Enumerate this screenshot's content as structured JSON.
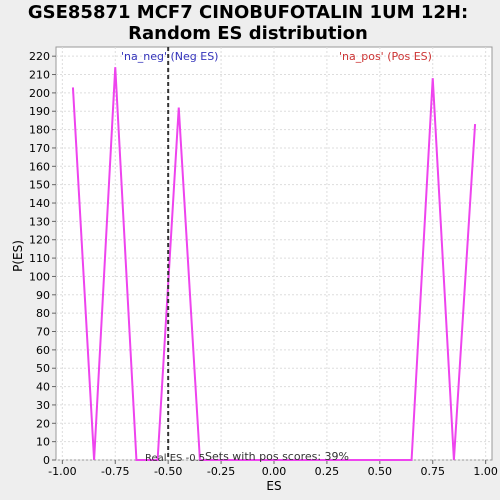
{
  "chart_data": {
    "type": "line",
    "title_line1": "GSE85871 MCF7 CINOBUFOTALIN 1UM 12H:",
    "title_line2": "Random ES distribution",
    "xlabel": "ES",
    "ylabel": "P(ES)",
    "xlim": [
      -1.03,
      1.03
    ],
    "ylim": [
      0,
      225
    ],
    "x_ticks": [
      -1.0,
      -0.75,
      -0.5,
      -0.25,
      0.0,
      0.25,
      0.5,
      0.75,
      1.0
    ],
    "x_tick_labels": [
      "-1.00",
      "-0.75",
      "-0.50",
      "-0.25",
      "0.00",
      "0.25",
      "0.50",
      "0.75",
      "1.00"
    ],
    "y_ticks": [
      0,
      10,
      20,
      30,
      40,
      50,
      60,
      70,
      80,
      90,
      100,
      110,
      120,
      130,
      140,
      150,
      160,
      170,
      180,
      190,
      200,
      210,
      220
    ],
    "grid": true,
    "series": [
      {
        "color": "#ee44ee",
        "x": [
          -0.95,
          -0.85,
          -0.75,
          -0.65,
          -0.55,
          -0.45,
          -0.35,
          -0.25,
          -0.15,
          -0.05,
          0.05,
          0.15,
          0.25,
          0.35,
          0.45,
          0.55,
          0.65,
          0.75,
          0.85,
          0.95
        ],
        "y": [
          203,
          0,
          214,
          0,
          0,
          192,
          0,
          0,
          0,
          0,
          0,
          0,
          0,
          0,
          0,
          0,
          0,
          208,
          0,
          183
        ]
      }
    ],
    "real_es": -0.5,
    "real_es_label": "Real ES -0.5",
    "neg_label": "'na_neg' (Neg ES)",
    "pos_label": "'na_pos' (Pos ES)",
    "pos_scores_label": "Sets with pos scores: 39%",
    "colors": {
      "line": "#ee44ee",
      "neg": "#3333bb",
      "pos": "#cc3333",
      "grid": "#dddddd",
      "plot_bg": "#ffffff"
    }
  }
}
